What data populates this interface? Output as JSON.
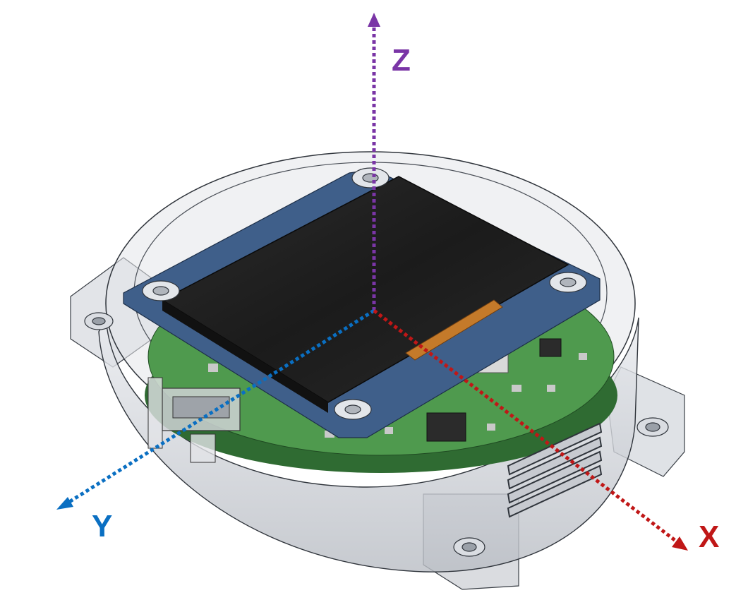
{
  "axes": {
    "z": {
      "label": "Z",
      "color": "#7a35a6"
    },
    "y": {
      "label": "Y",
      "color": "#0a6fc2"
    },
    "x": {
      "label": "X",
      "color": "#c01717"
    }
  },
  "colors": {
    "pcb_green": "#4f9a4e",
    "pcb_dark_green": "#2f6b32",
    "display_glass": "#232323",
    "display_board": "#3f5f8a",
    "flex_cable": "#c47a2a",
    "housing_shadow": "#9aa0a8"
  }
}
